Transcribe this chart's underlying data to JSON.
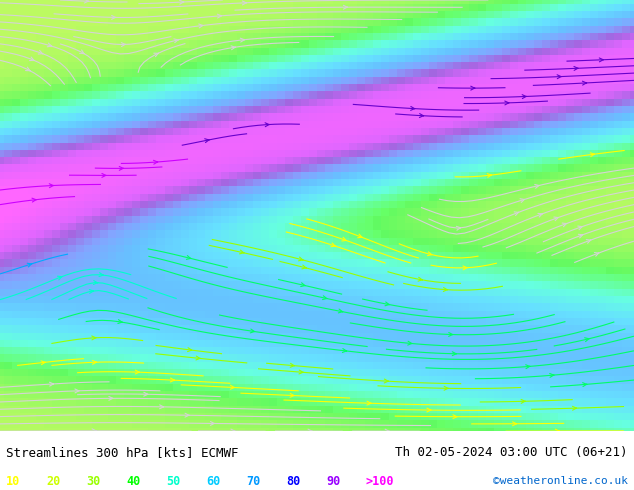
{
  "title_left": "Streamlines 300 hPa [kts] ECMWF",
  "title_right": "Th 02-05-2024 03:00 UTC (06+21)",
  "watermark": "©weatheronline.co.uk",
  "legend_values": [
    10,
    20,
    30,
    40,
    50,
    60,
    70,
    80,
    90,
    ">100"
  ],
  "legend_colors": [
    "#ffff00",
    "#ccff00",
    "#99ff00",
    "#00ff00",
    "#00ffcc",
    "#00ccff",
    "#0099ff",
    "#0000ff",
    "#9900ff",
    "#ff00ff"
  ],
  "background_color": "#ffffff",
  "plot_bg": "#e8e8e8",
  "figsize": [
    6.34,
    4.9
  ],
  "dpi": 100
}
